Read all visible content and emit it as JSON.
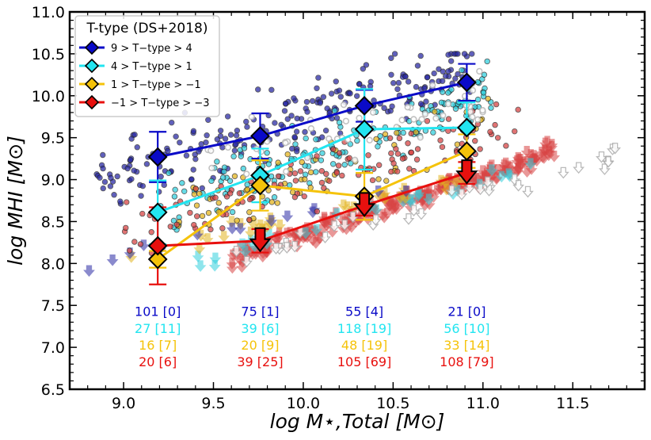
{
  "chart_data": {
    "type": "scatter",
    "xlabel": "log M⋆,Total [M⊙]",
    "ylabel": "log MHI [M⊙]",
    "xlim": [
      8.7,
      11.9
    ],
    "ylim": [
      6.5,
      11.0
    ],
    "xticks": [
      "9.0",
      "9.5",
      "10.0",
      "10.5",
      "11.0",
      "11.5"
    ],
    "yticks": [
      "6.5",
      "7.0",
      "7.5",
      "8.0",
      "8.5",
      "9.0",
      "9.5",
      "10.0",
      "10.5",
      "11.0"
    ],
    "legend": {
      "title": "T-type (DS+2018)",
      "position": "top-left",
      "entries": [
        "9 > T−type > 4",
        "4 > T−type > 1",
        "1 > T−type > −1",
        "−1 > T−type > −3"
      ]
    },
    "bin_centers": [
      9.19,
      9.76,
      10.34,
      10.91
    ],
    "series": [
      {
        "name": "9 > T−type > 4",
        "color": "#0a0ac8",
        "x": [
          9.19,
          9.76,
          10.34,
          10.91
        ],
        "y": [
          9.27,
          9.52,
          9.88,
          10.16
        ],
        "err": [
          0.3,
          0.27,
          0.19,
          0.22
        ],
        "upper_limit": [
          false,
          false,
          false,
          false
        ]
      },
      {
        "name": "4 > T−type > 1",
        "color": "#22e5f0",
        "x": [
          9.19,
          9.76,
          10.34,
          10.91
        ],
        "y": [
          8.61,
          9.05,
          9.6,
          9.62
        ],
        "err": [
          0.38,
          0.32,
          0.48,
          0.3
        ],
        "upper_limit": [
          false,
          false,
          false,
          false
        ]
      },
      {
        "name": "1 > T−type > −1",
        "color": "#f5c30a",
        "x": [
          9.19,
          9.76,
          10.34,
          10.91
        ],
        "y": [
          8.05,
          8.93,
          8.8,
          9.34
        ],
        "err": [
          0.1,
          0.3,
          0.28,
          0.2
        ],
        "upper_limit": [
          false,
          false,
          false,
          false
        ]
      },
      {
        "name": "−1 > T−type > −3",
        "color": "#e8100e",
        "x": [
          9.19,
          9.76,
          10.34,
          10.91
        ],
        "y": [
          8.21,
          8.27,
          8.69,
          9.08
        ],
        "err": [
          0.46,
          0.14,
          0.12,
          0.13
        ],
        "upper_limit": [
          false,
          true,
          true,
          true
        ]
      }
    ],
    "counts": [
      {
        "color": "#0a0ac8",
        "values": [
          "101 [0]",
          "75 [1]",
          "55 [4]",
          "21 [0]"
        ]
      },
      {
        "color": "#22e5f0",
        "values": [
          "27 [11]",
          "39 [6]",
          "118 [19]",
          "56 [10]"
        ]
      },
      {
        "color": "#f5c30a",
        "values": [
          "16 [7]",
          "20 [9]",
          "48 [19]",
          "33 [14]"
        ]
      },
      {
        "color": "#e8100e",
        "values": [
          "20 [6]",
          "39 [25]",
          "105 [69]",
          "108 [79]"
        ]
      }
    ],
    "count_rows_y": [
      7.43,
      7.23,
      7.03,
      6.83
    ],
    "background_points": {
      "colors": {
        "blue": "#2b2ba6",
        "cyan": "#33d0de",
        "yellow": "#e3b520",
        "red": "#d84545",
        "gray": "#b8b8b8"
      },
      "detections": [
        {
          "group": "blue",
          "x_range": [
            8.85,
            10.95
          ],
          "y_center": [
            8.95,
            10.35
          ],
          "spread": 0.42,
          "n": 240
        },
        {
          "group": "cyan",
          "x_range": [
            9.2,
            11.05
          ],
          "y_center": [
            8.6,
            10.1
          ],
          "spread": 0.35,
          "n": 170
        },
        {
          "group": "yellow",
          "x_range": [
            9.3,
            11.05
          ],
          "y_center": [
            8.6,
            9.7
          ],
          "spread": 0.35,
          "n": 70
        },
        {
          "group": "red",
          "x_range": [
            9.0,
            11.2
          ],
          "y_center": [
            8.4,
            9.7
          ],
          "spread": 0.35,
          "n": 130
        },
        {
          "group": "gray",
          "x_range": [
            9.4,
            11.0
          ],
          "y_center": [
            9.2,
            10.0
          ],
          "spread": 0.4,
          "n": 55
        }
      ],
      "limits": [
        {
          "group": "red",
          "x_range": [
            9.6,
            11.4
          ],
          "y_center": [
            8.05,
            9.35
          ],
          "spread": 0.12,
          "n": 230
        },
        {
          "group": "cyan",
          "x_range": [
            9.4,
            11.3
          ],
          "y_center": [
            8.05,
            9.2
          ],
          "spread": 0.12,
          "n": 30
        },
        {
          "group": "yellow",
          "x_range": [
            8.9,
            10.9
          ],
          "y_center": [
            8.03,
            9.0
          ],
          "spread": 0.1,
          "n": 30
        },
        {
          "group": "blue",
          "x_range": [
            8.8,
            10.6
          ],
          "y_center": [
            8.02,
            8.9
          ],
          "spread": 0.1,
          "n": 14
        },
        {
          "group": "gray",
          "x_range": [
            9.6,
            11.8
          ],
          "y_center": [
            8.0,
            9.4
          ],
          "spread": 0.15,
          "n": 35
        }
      ]
    }
  }
}
